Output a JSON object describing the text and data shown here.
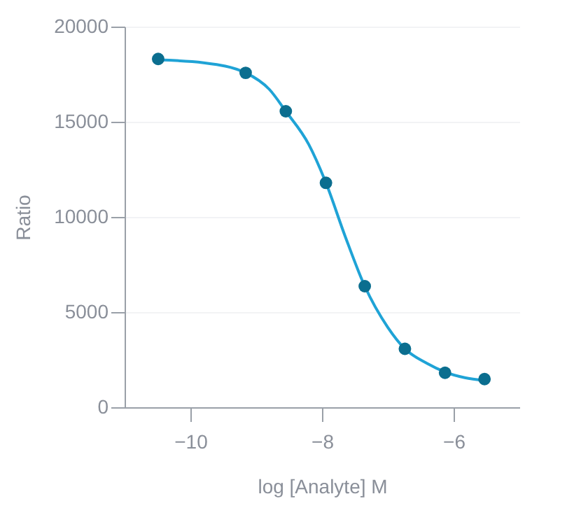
{
  "chart_data": {
    "type": "scatter",
    "xlabel": "log [Analyte] M",
    "ylabel": "Ratio",
    "xlim": [
      -11,
      -5
    ],
    "xticks": [
      -10,
      -8,
      -6
    ],
    "ylim": [
      0,
      20000
    ],
    "yticks": [
      0,
      5000,
      10000,
      15000,
      20000
    ],
    "grid": "y",
    "marker": "circle",
    "series": [
      {
        "type": "line",
        "color": "#1fa3d6",
        "line_style": "solid",
        "marker": "none",
        "x": [
          -10.49,
          -9.8,
          -9.16,
          -8.8,
          -8.55,
          -8.2,
          -7.94,
          -7.65,
          -7.35,
          -7.0,
          -6.74,
          -6.4,
          -6.13,
          -5.53
        ],
        "values": [
          18250,
          18100,
          17570,
          16700,
          15550,
          13800,
          11790,
          9000,
          6360,
          4200,
          3070,
          2300,
          1850,
          1400
        ]
      },
      {
        "color": "#0b6e8f",
        "x": [
          -10.49,
          -9.16,
          -8.55,
          -7.94,
          -7.35,
          -6.74,
          -6.13,
          -5.53
        ],
        "values": [
          18300,
          17570,
          15550,
          11790,
          6360,
          3070,
          1810,
          1480
        ]
      }
    ]
  }
}
